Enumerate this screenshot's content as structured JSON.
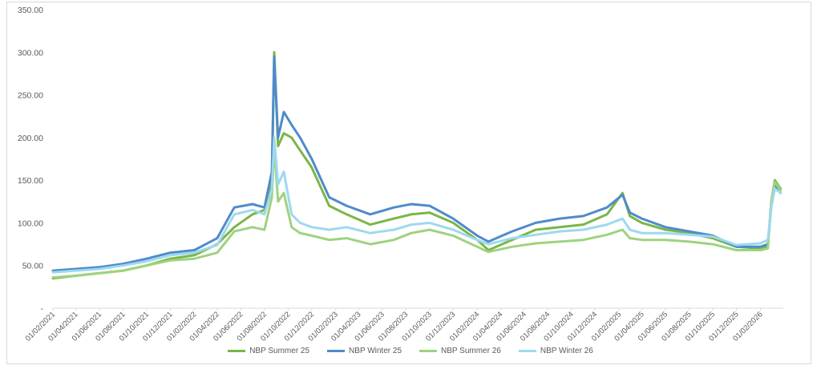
{
  "chart_data": {
    "type": "line",
    "ylim": [
      0,
      350
    ],
    "y_ticks": [
      "-",
      "50.00",
      "100.00",
      "150.00",
      "200.00",
      "250.00",
      "300.00",
      "350.00"
    ],
    "x_start": "2021-02-01",
    "x_end": "2026-04-01",
    "x_ticks": [
      "01/02/2021",
      "01/04/2021",
      "01/06/2021",
      "01/08/2021",
      "01/10/2021",
      "01/12/2021",
      "01/02/2022",
      "01/04/2022",
      "01/06/2022",
      "01/08/2022",
      "01/10/2022",
      "01/12/2022",
      "01/02/2023",
      "01/04/2023",
      "01/06/2023",
      "01/08/2023",
      "01/10/2023",
      "01/12/2023",
      "01/02/2024",
      "01/04/2024",
      "01/06/2024",
      "01/08/2024",
      "01/10/2024",
      "01/12/2024",
      "01/02/2025",
      "01/04/2025",
      "01/06/2025",
      "01/08/2025",
      "01/10/2025",
      "01/12/2025",
      "01/02/2026"
    ],
    "grid": false,
    "legend_position": "bottom",
    "x": [
      "2021-02-01",
      "2021-04-01",
      "2021-06-01",
      "2021-08-01",
      "2021-10-01",
      "2021-12-01",
      "2022-02-01",
      "2022-04-01",
      "2022-05-15",
      "2022-07-01",
      "2022-08-01",
      "2022-08-20",
      "2022-08-26",
      "2022-09-05",
      "2022-09-20",
      "2022-10-10",
      "2022-11-01",
      "2022-12-01",
      "2023-01-15",
      "2023-03-01",
      "2023-05-01",
      "2023-07-01",
      "2023-08-15",
      "2023-10-01",
      "2023-12-01",
      "2024-02-01",
      "2024-03-01",
      "2024-05-01",
      "2024-07-01",
      "2024-09-01",
      "2024-11-01",
      "2025-01-01",
      "2025-02-10",
      "2025-03-01",
      "2025-04-01",
      "2025-06-01",
      "2025-08-01",
      "2025-10-01",
      "2025-12-01",
      "2026-02-01",
      "2026-02-20",
      "2026-03-01",
      "2026-03-10",
      "2026-03-25"
    ],
    "series": [
      {
        "name": "NBP Summer 25",
        "color": "#7ab648",
        "values": [
          35,
          38,
          41,
          44,
          50,
          58,
          62,
          75,
          95,
          110,
          115,
          150,
          300,
          190,
          205,
          200,
          185,
          165,
          120,
          110,
          98,
          105,
          110,
          112,
          100,
          80,
          68,
          80,
          92,
          95,
          98,
          110,
          135,
          108,
          100,
          92,
          88,
          82,
          72,
          70,
          72,
          125,
          150,
          140
        ]
      },
      {
        "name": "NBP Winter 25",
        "color": "#4f8bc9",
        "values": [
          44,
          46,
          48,
          52,
          58,
          65,
          68,
          82,
          118,
          122,
          118,
          160,
          295,
          200,
          230,
          215,
          200,
          175,
          130,
          120,
          110,
          118,
          122,
          120,
          105,
          85,
          78,
          90,
          100,
          105,
          108,
          118,
          133,
          112,
          105,
          95,
          90,
          85,
          72,
          72,
          75,
          120,
          145,
          135
        ]
      },
      {
        "name": "NBP Summer 26",
        "color": "#9fd27f",
        "values": [
          36,
          38,
          41,
          44,
          50,
          56,
          58,
          65,
          90,
          95,
          92,
          130,
          190,
          125,
          135,
          95,
          88,
          85,
          80,
          82,
          75,
          80,
          88,
          92,
          85,
          72,
          66,
          72,
          76,
          78,
          80,
          86,
          92,
          82,
          80,
          80,
          78,
          75,
          68,
          68,
          70,
          125,
          148,
          138
        ]
      },
      {
        "name": "NBP Winter 26",
        "color": "#9dd9ef",
        "values": [
          42,
          44,
          46,
          50,
          55,
          62,
          65,
          74,
          110,
          115,
          110,
          140,
          200,
          145,
          160,
          110,
          100,
          95,
          92,
          95,
          88,
          92,
          98,
          100,
          92,
          80,
          75,
          82,
          86,
          90,
          92,
          98,
          105,
          92,
          88,
          88,
          86,
          84,
          74,
          76,
          80,
          118,
          140,
          135
        ]
      }
    ]
  }
}
